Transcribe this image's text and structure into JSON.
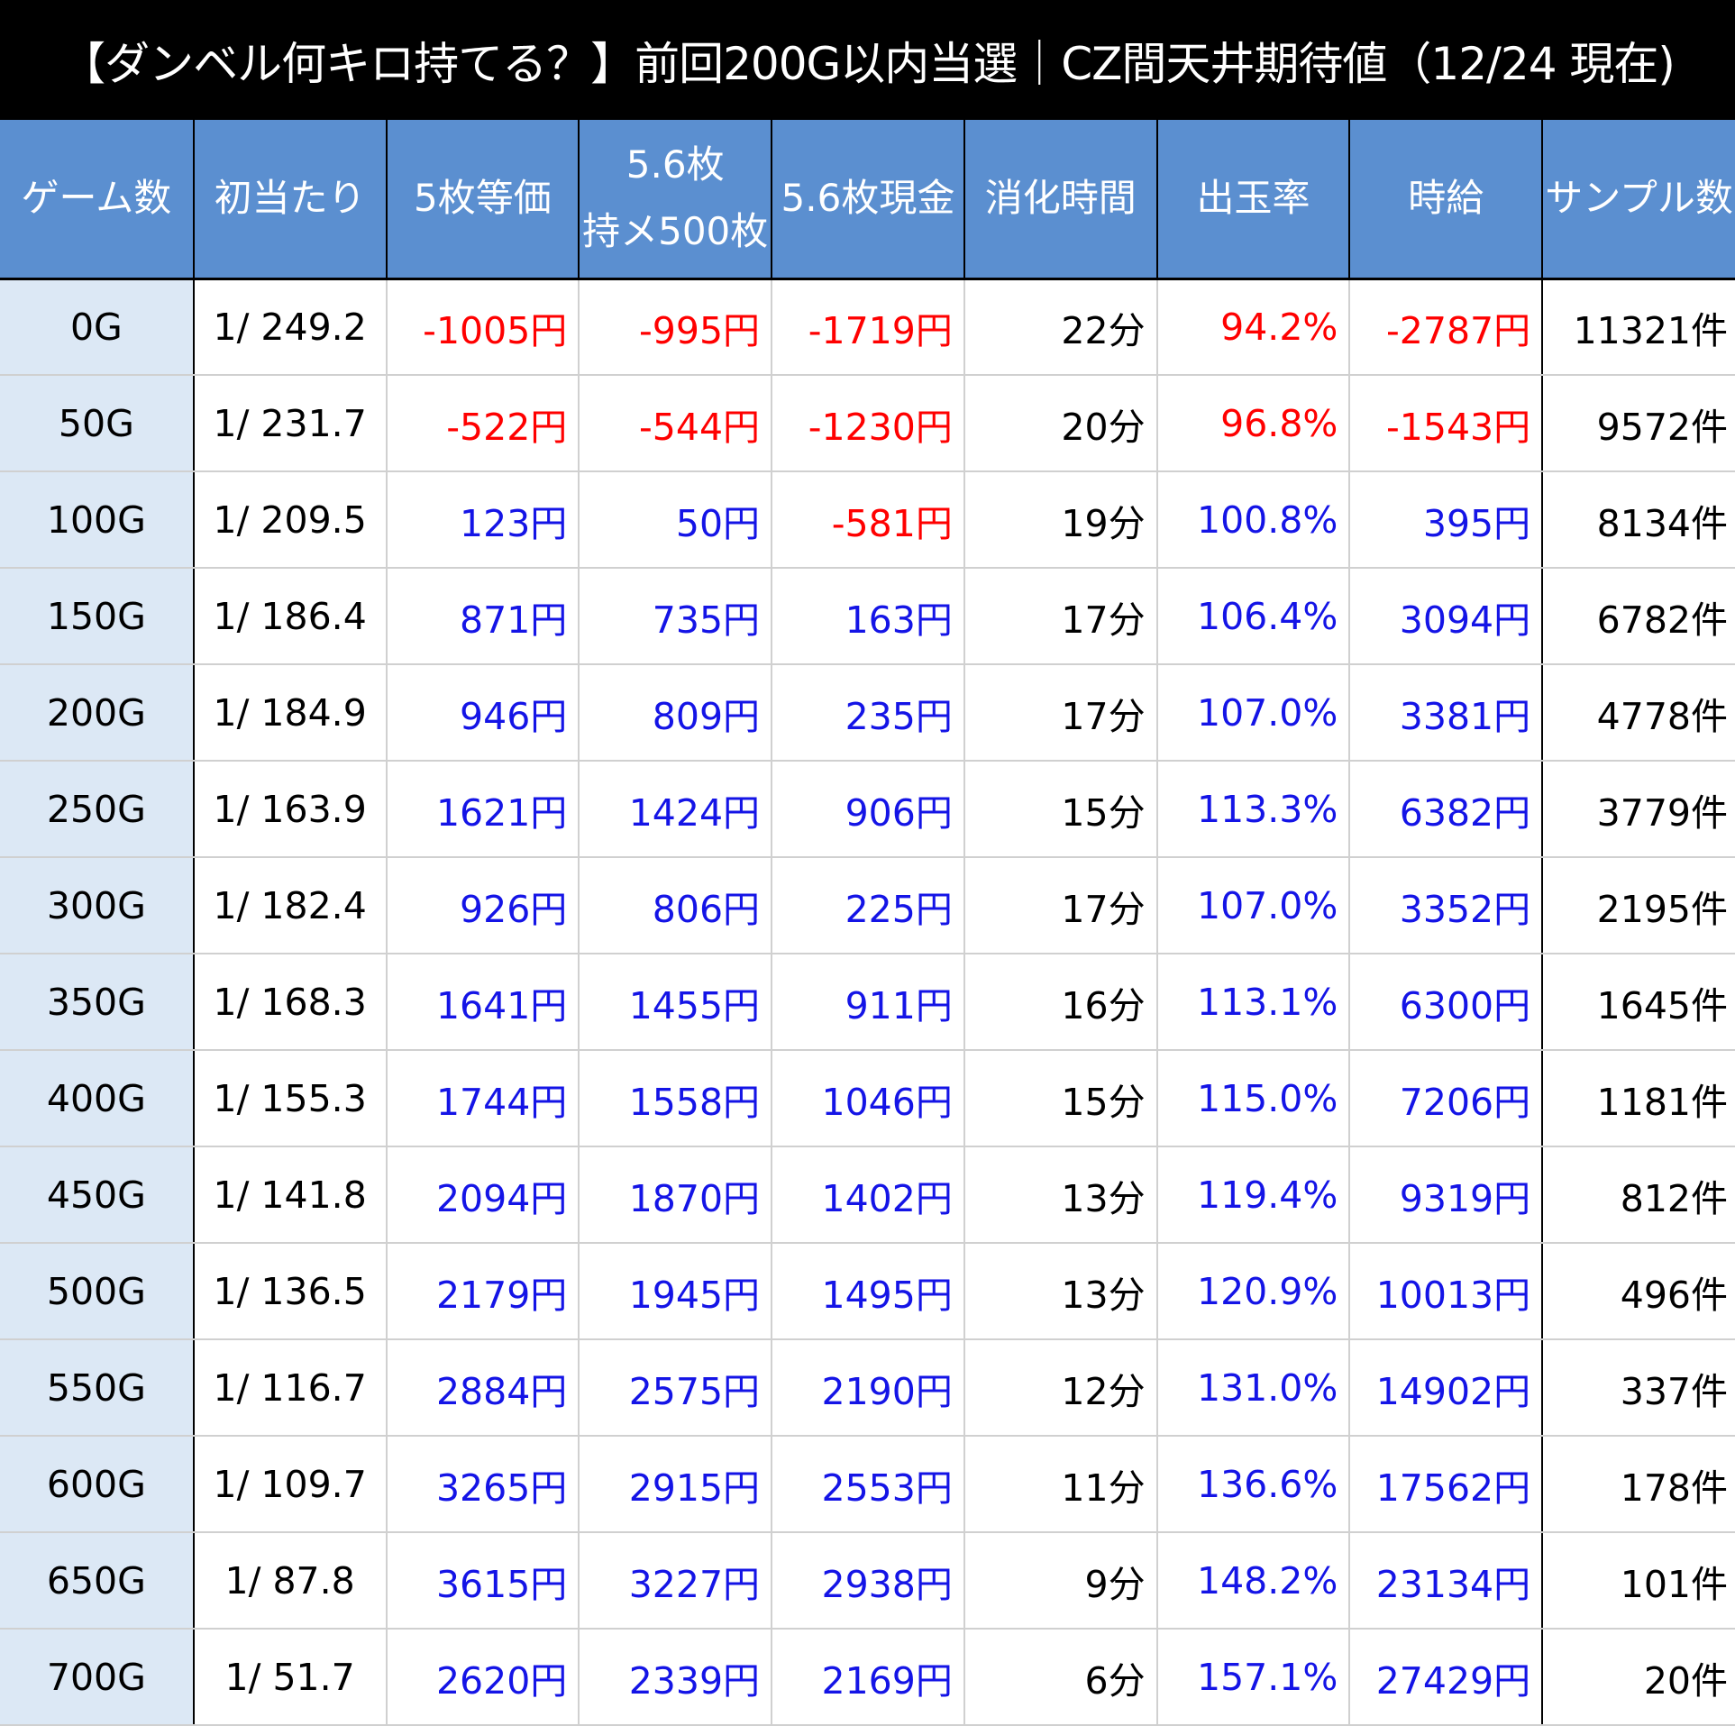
{
  "title": "【ダンベル何キロ持てる？】前回200G以内当選｜CZ間天井期待値（12/24 現在)",
  "colors": {
    "header_bg": "#5b8fd0",
    "games_col_bg": "#dce8f5",
    "negative": "#ff0000",
    "positive": "#1414e6"
  },
  "headers": [
    "ゲーム数",
    "初当たり",
    "5枚等価",
    "5.6枚",
    "持メ500枚",
    "5.6枚現金",
    "消化時間",
    "出玉率",
    "時給",
    "サンプル数"
  ],
  "rows": [
    {
      "games": "0G",
      "first": "1/ 249.2",
      "v5": "-1005円",
      "v56": "-995円",
      "cash": "-1719円",
      "time": "22分",
      "rate": "94.2%",
      "hourly": "-2787円",
      "samples": "11321件"
    },
    {
      "games": "50G",
      "first": "1/ 231.7",
      "v5": "-522円",
      "v56": "-544円",
      "cash": "-1230円",
      "time": "20分",
      "rate": "96.8%",
      "hourly": "-1543円",
      "samples": "9572件"
    },
    {
      "games": "100G",
      "first": "1/ 209.5",
      "v5": "123円",
      "v56": "50円",
      "cash": "-581円",
      "time": "19分",
      "rate": "100.8%",
      "hourly": "395円",
      "samples": "8134件"
    },
    {
      "games": "150G",
      "first": "1/ 186.4",
      "v5": "871円",
      "v56": "735円",
      "cash": "163円",
      "time": "17分",
      "rate": "106.4%",
      "hourly": "3094円",
      "samples": "6782件"
    },
    {
      "games": "200G",
      "first": "1/ 184.9",
      "v5": "946円",
      "v56": "809円",
      "cash": "235円",
      "time": "17分",
      "rate": "107.0%",
      "hourly": "3381円",
      "samples": "4778件"
    },
    {
      "games": "250G",
      "first": "1/ 163.9",
      "v5": "1621円",
      "v56": "1424円",
      "cash": "906円",
      "time": "15分",
      "rate": "113.3%",
      "hourly": "6382円",
      "samples": "3779件"
    },
    {
      "games": "300G",
      "first": "1/ 182.4",
      "v5": "926円",
      "v56": "806円",
      "cash": "225円",
      "time": "17分",
      "rate": "107.0%",
      "hourly": "3352円",
      "samples": "2195件"
    },
    {
      "games": "350G",
      "first": "1/ 168.3",
      "v5": "1641円",
      "v56": "1455円",
      "cash": "911円",
      "time": "16分",
      "rate": "113.1%",
      "hourly": "6300円",
      "samples": "1645件"
    },
    {
      "games": "400G",
      "first": "1/ 155.3",
      "v5": "1744円",
      "v56": "1558円",
      "cash": "1046円",
      "time": "15分",
      "rate": "115.0%",
      "hourly": "7206円",
      "samples": "1181件"
    },
    {
      "games": "450G",
      "first": "1/ 141.8",
      "v5": "2094円",
      "v56": "1870円",
      "cash": "1402円",
      "time": "13分",
      "rate": "119.4%",
      "hourly": "9319円",
      "samples": "812件"
    },
    {
      "games": "500G",
      "first": "1/ 136.5",
      "v5": "2179円",
      "v56": "1945円",
      "cash": "1495円",
      "time": "13分",
      "rate": "120.9%",
      "hourly": "10013円",
      "samples": "496件"
    },
    {
      "games": "550G",
      "first": "1/ 116.7",
      "v5": "2884円",
      "v56": "2575円",
      "cash": "2190円",
      "time": "12分",
      "rate": "131.0%",
      "hourly": "14902円",
      "samples": "337件"
    },
    {
      "games": "600G",
      "first": "1/ 109.7",
      "v5": "3265円",
      "v56": "2915円",
      "cash": "2553円",
      "time": "11分",
      "rate": "136.6%",
      "hourly": "17562円",
      "samples": "178件"
    },
    {
      "games": "650G",
      "first": "1/ 87.8",
      "v5": "3615円",
      "v56": "3227円",
      "cash": "2938円",
      "time": "9分",
      "rate": "148.2%",
      "hourly": "23134円",
      "samples": "101件"
    },
    {
      "games": "700G",
      "first": "1/ 51.7",
      "v5": "2620円",
      "v56": "2339円",
      "cash": "2169円",
      "time": "6分",
      "rate": "157.1%",
      "hourly": "27429円",
      "samples": "20件"
    }
  ]
}
